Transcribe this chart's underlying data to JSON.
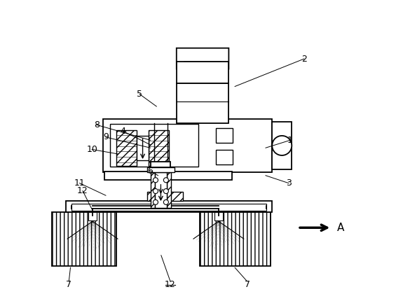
{
  "bg_color": "#ffffff",
  "line_color": "#000000",
  "figsize": [
    5.65,
    4.4
  ],
  "dpi": 100
}
